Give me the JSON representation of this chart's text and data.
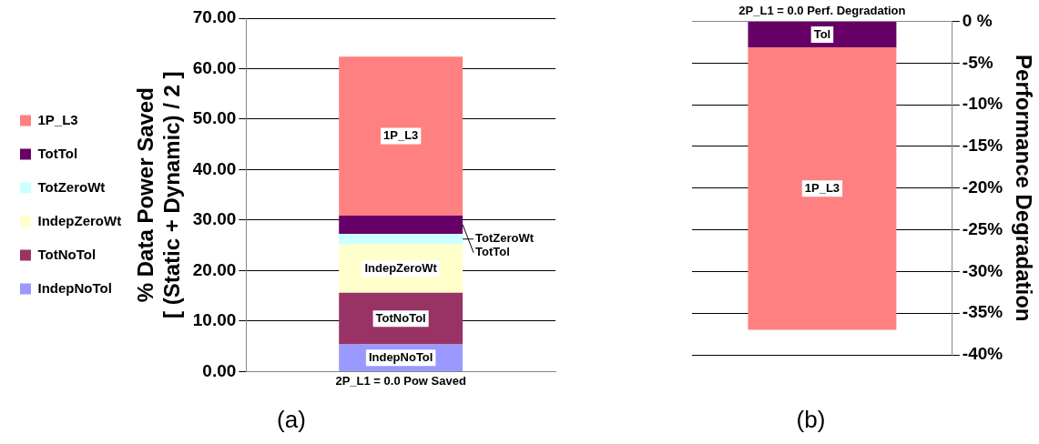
{
  "chart_data": [
    {
      "type": "bar",
      "stacked": true,
      "categories": [
        "2P_L1 = 0.0 Pow Saved"
      ],
      "ylabel": "% Data Power Saved\n[ (Static + Dynamic) / 2 ]",
      "series": [
        {
          "name": "IndepNoTol",
          "color": "#9999ff",
          "values": [
            5.4
          ]
        },
        {
          "name": "TotNoTol",
          "color": "#993366",
          "values": [
            10.2
          ]
        },
        {
          "name": "IndepZeroWt",
          "color": "#ffffcc",
          "values": [
            9.6
          ]
        },
        {
          "name": "TotZeroWt",
          "color": "#ccffff",
          "values": [
            2.1
          ]
        },
        {
          "name": "TotTol",
          "color": "#660066",
          "values": [
            3.6
          ]
        },
        {
          "name": "1P_L3",
          "color": "#ff8080",
          "values": [
            31.5
          ]
        }
      ],
      "ylim": [
        0,
        70
      ],
      "yticks": [
        {
          "value": 0,
          "label": "0.00"
        },
        {
          "value": 10,
          "label": "10.00"
        },
        {
          "value": 20,
          "label": "20.00"
        },
        {
          "value": 30,
          "label": "30.00"
        },
        {
          "value": 40,
          "label": "40.00"
        },
        {
          "value": 50,
          "label": "50.00"
        },
        {
          "value": 60,
          "label": "60.00"
        },
        {
          "value": 70,
          "label": "70.00"
        }
      ],
      "grid": "y",
      "legend": "left",
      "annotations": [
        "(a)"
      ]
    },
    {
      "type": "bar",
      "stacked": true,
      "categories": [
        "2P_L1 = 0.0 Perf. Degradation"
      ],
      "y2label": "Performance Degradation",
      "series": [
        {
          "name": "Tol",
          "color": "#660066",
          "values": [
            -3.1
          ],
          "axis": "y2"
        },
        {
          "name": "1P_L3",
          "color": "#ff8080",
          "values": [
            -33.9
          ],
          "axis": "y2"
        }
      ],
      "y2lim": [
        -40,
        0
      ],
      "y2ticks": [
        {
          "value": 0,
          "label": "0 %"
        },
        {
          "value": -5,
          "label": "-5%"
        },
        {
          "value": -10,
          "label": "-10%"
        },
        {
          "value": -15,
          "label": "-15%"
        },
        {
          "value": -20,
          "label": "-20%"
        },
        {
          "value": -25,
          "label": "-25%"
        },
        {
          "value": -30,
          "label": "-30%"
        },
        {
          "value": -35,
          "label": "-35%"
        },
        {
          "value": -40,
          "label": "-40%"
        }
      ],
      "grid": "y",
      "annotations": [
        "(b)"
      ]
    }
  ]
}
